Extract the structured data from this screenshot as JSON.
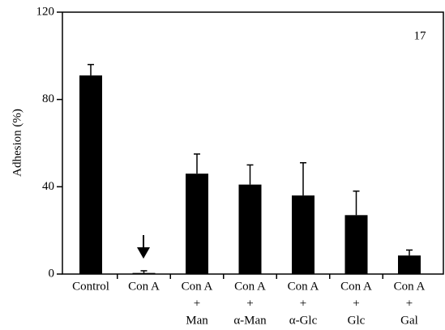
{
  "chart_data": {
    "type": "bar",
    "y_label": "Adhesion (%)",
    "annotation": "17",
    "categories": [
      [
        "Control"
      ],
      [
        "Con A"
      ],
      [
        "Con A",
        "+",
        "Man"
      ],
      [
        "Con A",
        "+",
        "α-Man"
      ],
      [
        "Con A",
        "+",
        "α-Glc"
      ],
      [
        "Con A",
        "+",
        "Glc"
      ],
      [
        "Con A",
        "+",
        "Gal"
      ]
    ],
    "values": [
      91,
      0.5,
      46,
      41,
      36,
      27,
      8.5
    ],
    "errors": [
      5,
      1,
      9,
      9,
      15,
      11,
      2.5
    ],
    "color": "#000000",
    "ylim": [
      0,
      120
    ],
    "yticks": [
      0,
      40,
      80,
      120
    ]
  }
}
